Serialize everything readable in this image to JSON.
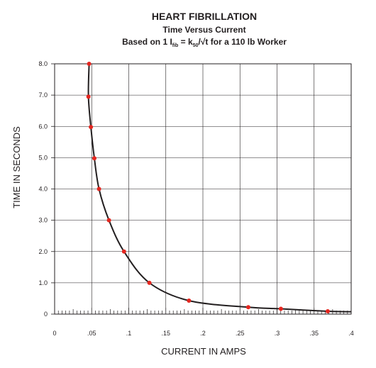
{
  "chart_data": {
    "type": "line",
    "title": "HEART FIBRILLATION",
    "subtitle": "Time Versus Current",
    "formula": {
      "prefix": "Based on 1 I",
      "fib_subscript": "fib",
      "eq": " = k",
      "k_subscript": "50",
      "suffix": "/√t for a 110 lb Worker"
    },
    "xlabel": "CURRENT IN AMPS",
    "ylabel": "TIME IN SECONDS",
    "xlim": [
      0,
      0.4
    ],
    "ylim": [
      0,
      8.0
    ],
    "x_ticks": [
      {
        "value": 0,
        "label": "0"
      },
      {
        "value": 0.05,
        "label": ".05"
      },
      {
        "value": 0.1,
        "label": ".1"
      },
      {
        "value": 0.15,
        "label": ".15"
      },
      {
        "value": 0.2,
        "label": ".2"
      },
      {
        "value": 0.25,
        "label": ".25"
      },
      {
        "value": 0.3,
        "label": ".3"
      },
      {
        "value": 0.35,
        "label": ".35"
      },
      {
        "value": 0.4,
        "label": ".4"
      }
    ],
    "y_ticks": [
      {
        "value": 0,
        "label": "0"
      },
      {
        "value": 1,
        "label": "1.0"
      },
      {
        "value": 2,
        "label": "2.0"
      },
      {
        "value": 3,
        "label": "3.0"
      },
      {
        "value": 4,
        "label": "4.0"
      },
      {
        "value": 5,
        "label": "5.0"
      },
      {
        "value": 6,
        "label": "6.0"
      },
      {
        "value": 7,
        "label": "7.0"
      },
      {
        "value": 8,
        "label": "8.0"
      }
    ],
    "grid": true,
    "curve_color": "#231f20",
    "marker_color": "#e5261f",
    "series": [
      {
        "x": [
          0.0465,
          0.0456,
          0.0489,
          0.0536,
          0.0599,
          0.0733,
          0.0936,
          0.1278,
          0.1812,
          0.2612,
          0.3052,
          0.3684
        ],
        "y": [
          8.0,
          6.95,
          5.98,
          4.98,
          4.0,
          3.0,
          2.0,
          1.0,
          0.43,
          0.22,
          0.17,
          0.09
        ]
      }
    ]
  }
}
